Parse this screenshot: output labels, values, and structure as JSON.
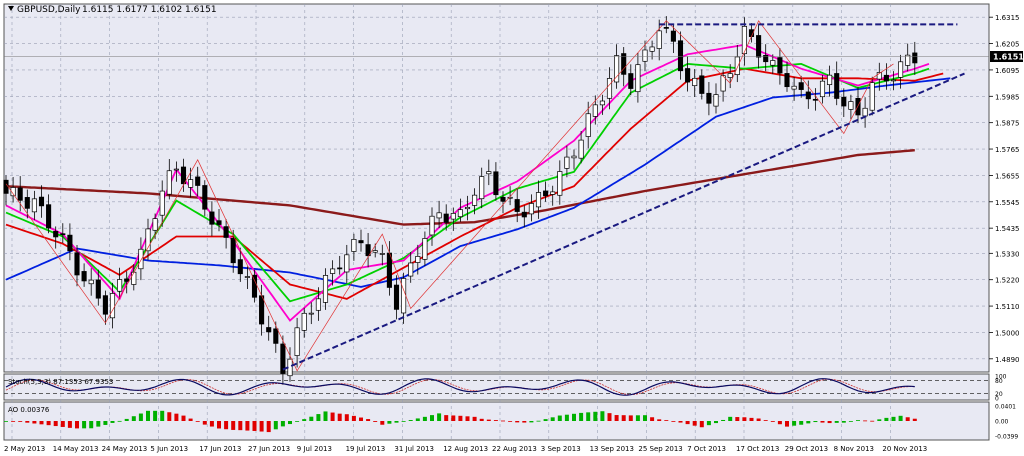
{
  "header": {
    "symbol": "GBPUSD,Daily",
    "ohlc": "1.6115 1.6177 1.6102 1.6151"
  },
  "current_price": "1.6151",
  "colors": {
    "background": "#e8e9f3",
    "grid": "#9aa0b4",
    "bull_candle": "#ffffff",
    "bear_candle": "#000000",
    "ma_magenta": "#ff00cc",
    "ma_green": "#00d000",
    "ma_red": "#e00000",
    "ma_blue": "#0020e0",
    "ma_brown": "#8b1a1a",
    "trendline": "#1a1a80",
    "ao_up": "#00b000",
    "ao_down": "#e00000"
  },
  "chart_data": {
    "type": "candlestick",
    "price_axis": {
      "ticks": [
        "1.6315",
        "1.6205",
        "1.6095",
        "1.5985",
        "1.5875",
        "1.5765",
        "1.5655",
        "1.5545",
        "1.5435",
        "1.5330",
        "1.5220",
        "1.5110",
        "1.5000",
        "1.4890"
      ],
      "ylim": [
        1.4835,
        1.637
      ]
    },
    "time_axis": {
      "labels": [
        "2 May 2013",
        "14 May 2013",
        "24 May 2013",
        "5 Jun 2013",
        "17 Jun 2013",
        "27 Jun 2013",
        "9 Jul 2013",
        "19 Jul 2013",
        "31 Jul 2013",
        "12 Aug 2013",
        "22 Aug 2013",
        "3 Sep 2013",
        "13 Sep 2013",
        "25 Sep 2013",
        "7 Oct 2013",
        "17 Oct 2013",
        "29 Oct 2013",
        "8 Nov 2013",
        "20 Nov 2013"
      ]
    },
    "close_path": [
      [
        0,
        1.558
      ],
      [
        4,
        1.554
      ],
      [
        8,
        1.538
      ],
      [
        11,
        1.522
      ],
      [
        14,
        1.511
      ],
      [
        16,
        1.519
      ],
      [
        19,
        1.532
      ],
      [
        22,
        1.56
      ],
      [
        24,
        1.568
      ],
      [
        26,
        1.563
      ],
      [
        29,
        1.548
      ],
      [
        32,
        1.532
      ],
      [
        35,
        1.514
      ],
      [
        37,
        1.5
      ],
      [
        39,
        1.484
      ],
      [
        41,
        1.5
      ],
      [
        44,
        1.516
      ],
      [
        47,
        1.53
      ],
      [
        50,
        1.538
      ],
      [
        53,
        1.53
      ],
      [
        55,
        1.512
      ],
      [
        58,
        1.535
      ],
      [
        61,
        1.55
      ],
      [
        64,
        1.548
      ],
      [
        66,
        1.56
      ],
      [
        68,
        1.565
      ],
      [
        70,
        1.556
      ],
      [
        72,
        1.55
      ],
      [
        75,
        1.555
      ],
      [
        78,
        1.565
      ],
      [
        81,
        1.582
      ],
      [
        84,
        1.6
      ],
      [
        86,
        1.612
      ],
      [
        88,
        1.605
      ],
      [
        90,
        1.615
      ],
      [
        92,
        1.628
      ],
      [
        94,
        1.62
      ],
      [
        96,
        1.605
      ],
      [
        98,
        1.6
      ],
      [
        100,
        1.598
      ],
      [
        102,
        1.61
      ],
      [
        104,
        1.625
      ],
      [
        106,
        1.618
      ],
      [
        108,
        1.61
      ],
      [
        110,
        1.606
      ],
      [
        112,
        1.598
      ],
      [
        114,
        1.6
      ],
      [
        116,
        1.605
      ],
      [
        118,
        1.596
      ],
      [
        120,
        1.59
      ],
      [
        122,
        1.604
      ],
      [
        124,
        1.606
      ],
      [
        126,
        1.611
      ],
      [
        128,
        1.615
      ]
    ],
    "moving_averages": [
      {
        "color": "ma_brown",
        "values": [
          [
            0,
            1.561
          ],
          [
            20,
            1.558
          ],
          [
            40,
            1.553
          ],
          [
            56,
            1.545
          ],
          [
            66,
            1.546
          ],
          [
            76,
            1.551
          ],
          [
            90,
            1.559
          ],
          [
            104,
            1.566
          ],
          [
            120,
            1.574
          ],
          [
            128,
            1.576
          ]
        ]
      },
      {
        "color": "ma_blue",
        "values": [
          [
            0,
            1.522
          ],
          [
            10,
            1.535
          ],
          [
            20,
            1.53
          ],
          [
            30,
            1.528
          ],
          [
            40,
            1.525
          ],
          [
            50,
            1.519
          ],
          [
            56,
            1.523
          ],
          [
            64,
            1.536
          ],
          [
            72,
            1.543
          ],
          [
            80,
            1.552
          ],
          [
            90,
            1.57
          ],
          [
            100,
            1.59
          ],
          [
            108,
            1.598
          ],
          [
            116,
            1.6
          ],
          [
            124,
            1.603
          ],
          [
            133,
            1.606
          ]
        ]
      },
      {
        "color": "ma_red",
        "values": [
          [
            0,
            1.545
          ],
          [
            8,
            1.537
          ],
          [
            16,
            1.524
          ],
          [
            24,
            1.54
          ],
          [
            32,
            1.54
          ],
          [
            40,
            1.52
          ],
          [
            48,
            1.514
          ],
          [
            56,
            1.527
          ],
          [
            64,
            1.54
          ],
          [
            72,
            1.552
          ],
          [
            80,
            1.561
          ],
          [
            88,
            1.585
          ],
          [
            96,
            1.605
          ],
          [
            104,
            1.61
          ],
          [
            112,
            1.606
          ],
          [
            120,
            1.606
          ],
          [
            128,
            1.605
          ],
          [
            132,
            1.608
          ]
        ]
      },
      {
        "color": "ma_green",
        "values": [
          [
            0,
            1.55
          ],
          [
            8,
            1.54
          ],
          [
            16,
            1.517
          ],
          [
            24,
            1.555
          ],
          [
            32,
            1.541
          ],
          [
            40,
            1.513
          ],
          [
            48,
            1.52
          ],
          [
            56,
            1.531
          ],
          [
            64,
            1.548
          ],
          [
            72,
            1.56
          ],
          [
            80,
            1.567
          ],
          [
            88,
            1.6
          ],
          [
            96,
            1.612
          ],
          [
            104,
            1.61
          ],
          [
            112,
            1.612
          ],
          [
            120,
            1.602
          ],
          [
            128,
            1.608
          ],
          [
            130,
            1.61
          ]
        ]
      },
      {
        "color": "ma_magenta",
        "values": [
          [
            0,
            1.553
          ],
          [
            8,
            1.541
          ],
          [
            16,
            1.514
          ],
          [
            24,
            1.568
          ],
          [
            32,
            1.538
          ],
          [
            40,
            1.505
          ],
          [
            48,
            1.526
          ],
          [
            56,
            1.53
          ],
          [
            64,
            1.552
          ],
          [
            72,
            1.563
          ],
          [
            80,
            1.58
          ],
          [
            88,
            1.605
          ],
          [
            96,
            1.616
          ],
          [
            104,
            1.62
          ],
          [
            112,
            1.61
          ],
          [
            120,
            1.603
          ],
          [
            128,
            1.61
          ],
          [
            130,
            1.612
          ]
        ]
      }
    ],
    "trendline": {
      "from": [
        39,
        1.4845
      ],
      "to": [
        135,
        1.608
      ],
      "style": "dashed"
    },
    "resistance_line": {
      "from": [
        92,
        1.6285
      ],
      "to": [
        134,
        1.6285
      ],
      "style": "dashed"
    },
    "stochastic": {
      "label": "Stoch(5,3,3) 87.1353 67.9353",
      "ticks": [
        "100",
        "80",
        "20",
        "0"
      ],
      "levels": [
        20,
        80
      ]
    },
    "ao": {
      "label": "AO 0.00376",
      "ticks": [
        "0.0401",
        "0.00",
        "-0.0399"
      ],
      "ylim": [
        -0.045,
        0.045
      ]
    }
  }
}
